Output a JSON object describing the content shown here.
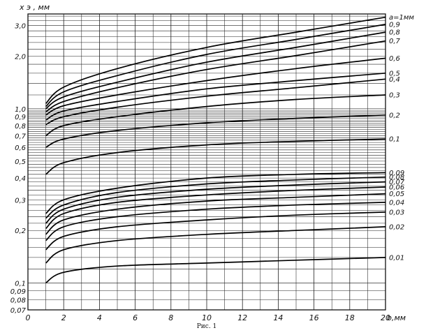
{
  "chart_data": {
    "type": "line",
    "title": "",
    "caption": "Рис. 1",
    "xlabel": "b,мм",
    "ylabel": "x э , мм",
    "xlim": [
      0,
      20
    ],
    "ylim": [
      0.07,
      3.5
    ],
    "y_scale": "log",
    "grid": true,
    "x_ticks": [
      "0",
      "2",
      "4",
      "6",
      "8",
      "10",
      "12",
      "14",
      "16",
      "18",
      "20"
    ],
    "y_ticks": [
      {
        "value": 3.0,
        "label": "3,0"
      },
      {
        "value": 2.0,
        "label": "2,0"
      },
      {
        "value": 1.0,
        "label": "1,0"
      },
      {
        "value": 0.9,
        "label": "0,9"
      },
      {
        "value": 0.8,
        "label": "0,8"
      },
      {
        "value": 0.7,
        "label": "0,7"
      },
      {
        "value": 0.6,
        "label": "0,6"
      },
      {
        "value": 0.5,
        "label": "0,5"
      },
      {
        "value": 0.4,
        "label": "0,4"
      },
      {
        "value": 0.3,
        "label": "0,3"
      },
      {
        "value": 0.2,
        "label": "0,2"
      },
      {
        "value": 0.1,
        "label": "0,1"
      },
      {
        "value": 0.09,
        "label": "0,09"
      },
      {
        "value": 0.08,
        "label": "0,08"
      },
      {
        "value": 0.07,
        "label": "0,07"
      }
    ],
    "series": [
      {
        "name": "a=1мм",
        "x": [
          1,
          2,
          5,
          10,
          15,
          20
        ],
        "values": [
          1.07,
          1.33,
          1.7,
          2.25,
          2.75,
          3.35
        ]
      },
      {
        "name": "0,9",
        "x": [
          1,
          2,
          5,
          10,
          15,
          20
        ],
        "values": [
          1.03,
          1.25,
          1.55,
          2.05,
          2.5,
          3.05
        ]
      },
      {
        "name": "0,8",
        "x": [
          1,
          2,
          5,
          10,
          15,
          20
        ],
        "values": [
          1.0,
          1.17,
          1.42,
          1.85,
          2.25,
          2.75
        ]
      },
      {
        "name": "0,7",
        "x": [
          1,
          2,
          5,
          10,
          15,
          20
        ],
        "values": [
          0.96,
          1.1,
          1.32,
          1.68,
          2.02,
          2.45
        ]
      },
      {
        "name": "0,6",
        "x": [
          1,
          2,
          5,
          10,
          15,
          20
        ],
        "values": [
          0.92,
          1.04,
          1.2,
          1.45,
          1.7,
          1.95
        ]
      },
      {
        "name": "0,5",
        "x": [
          1,
          2,
          5,
          10,
          15,
          20
        ],
        "values": [
          0.86,
          0.97,
          1.1,
          1.3,
          1.45,
          1.6
        ]
      },
      {
        "name": "0,4",
        "x": [
          1,
          2,
          5,
          10,
          15,
          20
        ],
        "values": [
          0.81,
          0.9,
          1.02,
          1.18,
          1.32,
          1.48
        ]
      },
      {
        "name": "0,3",
        "x": [
          1,
          2,
          5,
          10,
          15,
          20
        ],
        "values": [
          0.7,
          0.8,
          0.9,
          1.03,
          1.13,
          1.2
        ]
      },
      {
        "name": "0,2",
        "x": [
          1,
          2,
          5,
          10,
          15,
          20
        ],
        "values": [
          0.6,
          0.67,
          0.75,
          0.83,
          0.88,
          0.92
        ]
      },
      {
        "name": "0,1",
        "x": [
          1,
          2,
          5,
          10,
          15,
          20
        ],
        "values": [
          0.42,
          0.49,
          0.56,
          0.62,
          0.65,
          0.67
        ]
      },
      {
        "name": "0,09",
        "x": [
          1,
          2,
          5,
          10,
          15,
          20
        ],
        "values": [
          0.25,
          0.3,
          0.35,
          0.4,
          0.42,
          0.43
        ]
      },
      {
        "name": "0,08",
        "x": [
          1,
          2,
          5,
          10,
          15,
          20
        ],
        "values": [
          0.235,
          0.28,
          0.33,
          0.37,
          0.39,
          0.405
        ]
      },
      {
        "name": "0,07",
        "x": [
          1,
          2,
          5,
          10,
          15,
          20
        ],
        "values": [
          0.22,
          0.265,
          0.31,
          0.345,
          0.365,
          0.38
        ]
      },
      {
        "name": "0,06",
        "x": [
          1,
          2,
          5,
          10,
          15,
          20
        ],
        "values": [
          0.205,
          0.25,
          0.29,
          0.32,
          0.34,
          0.355
        ]
      },
      {
        "name": "0,05",
        "x": [
          1,
          2,
          5,
          10,
          15,
          20
        ],
        "values": [
          0.19,
          0.23,
          0.265,
          0.295,
          0.31,
          0.325
        ]
      },
      {
        "name": "0,04",
        "x": [
          1,
          2,
          5,
          10,
          15,
          20
        ],
        "values": [
          0.175,
          0.21,
          0.24,
          0.265,
          0.28,
          0.29
        ]
      },
      {
        "name": "0,03",
        "x": [
          1,
          2,
          5,
          10,
          15,
          20
        ],
        "values": [
          0.155,
          0.185,
          0.21,
          0.23,
          0.245,
          0.255
        ]
      },
      {
        "name": "0,02",
        "x": [
          1,
          2,
          5,
          10,
          15,
          20
        ],
        "values": [
          0.13,
          0.155,
          0.175,
          0.19,
          0.2,
          0.21
        ]
      },
      {
        "name": "0,01",
        "x": [
          1,
          2,
          5,
          10,
          15,
          20
        ],
        "values": [
          0.1,
          0.115,
          0.125,
          0.13,
          0.135,
          0.14
        ]
      }
    ]
  }
}
